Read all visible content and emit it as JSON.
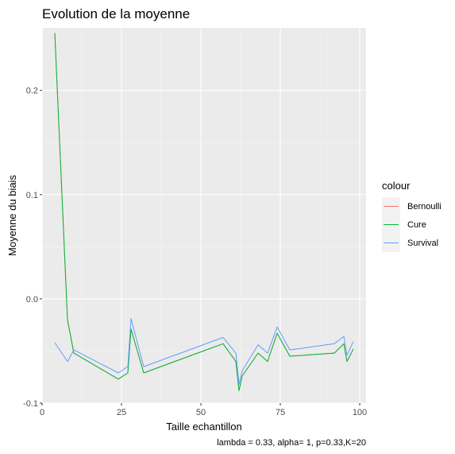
{
  "chart_data": {
    "type": "line",
    "title": "Evolution de la moyenne",
    "xlabel": "Taille echantillon",
    "ylabel": "Moyenne du biais",
    "caption": "lambda = 0.33, alpha= 1, p=0.33,K=20",
    "legend_title": "colour",
    "legend_position": "right",
    "grid": true,
    "xlim": [
      0,
      102
    ],
    "ylim": [
      -0.1,
      0.26
    ],
    "x_ticks": [
      0,
      25,
      50,
      75,
      100
    ],
    "y_ticks": [
      -0.1,
      0.0,
      0.1,
      0.2
    ],
    "x_tick_labels": [
      "0",
      "25",
      "50",
      "75",
      "100"
    ],
    "y_tick_labels": [
      "-0.1",
      "0.0",
      "0.1",
      "0.2"
    ],
    "series": [
      {
        "name": "Bernoulli",
        "color": "#F8766D",
        "x": [
          4,
          8,
          10,
          24,
          27,
          28,
          32,
          57,
          61,
          62,
          63,
          68,
          71,
          74,
          78,
          92,
          95,
          96,
          98
        ],
        "y": [
          0.255,
          -0.02,
          -0.052,
          -0.077,
          -0.071,
          -0.029,
          -0.071,
          -0.043,
          -0.06,
          -0.088,
          -0.074,
          -0.052,
          -0.06,
          -0.033,
          -0.055,
          -0.052,
          -0.043,
          -0.06,
          -0.048
        ]
      },
      {
        "name": "Cure",
        "color": "#00BA38",
        "x": [
          4,
          8,
          10,
          24,
          27,
          28,
          32,
          57,
          61,
          62,
          63,
          68,
          71,
          74,
          78,
          92,
          95,
          96,
          98
        ],
        "y": [
          0.255,
          -0.02,
          -0.052,
          -0.077,
          -0.071,
          -0.029,
          -0.071,
          -0.043,
          -0.06,
          -0.088,
          -0.074,
          -0.052,
          -0.06,
          -0.033,
          -0.055,
          -0.052,
          -0.043,
          -0.06,
          -0.048
        ]
      },
      {
        "name": "Survival",
        "color": "#619CFF",
        "x": [
          4,
          8,
          10,
          24,
          27,
          28,
          32,
          57,
          61,
          62,
          63,
          68,
          71,
          74,
          78,
          92,
          95,
          96,
          98
        ],
        "y": [
          -0.042,
          -0.06,
          -0.049,
          -0.071,
          -0.065,
          -0.019,
          -0.065,
          -0.037,
          -0.052,
          -0.082,
          -0.069,
          -0.044,
          -0.052,
          -0.027,
          -0.049,
          -0.043,
          -0.036,
          -0.054,
          -0.041
        ]
      }
    ]
  }
}
